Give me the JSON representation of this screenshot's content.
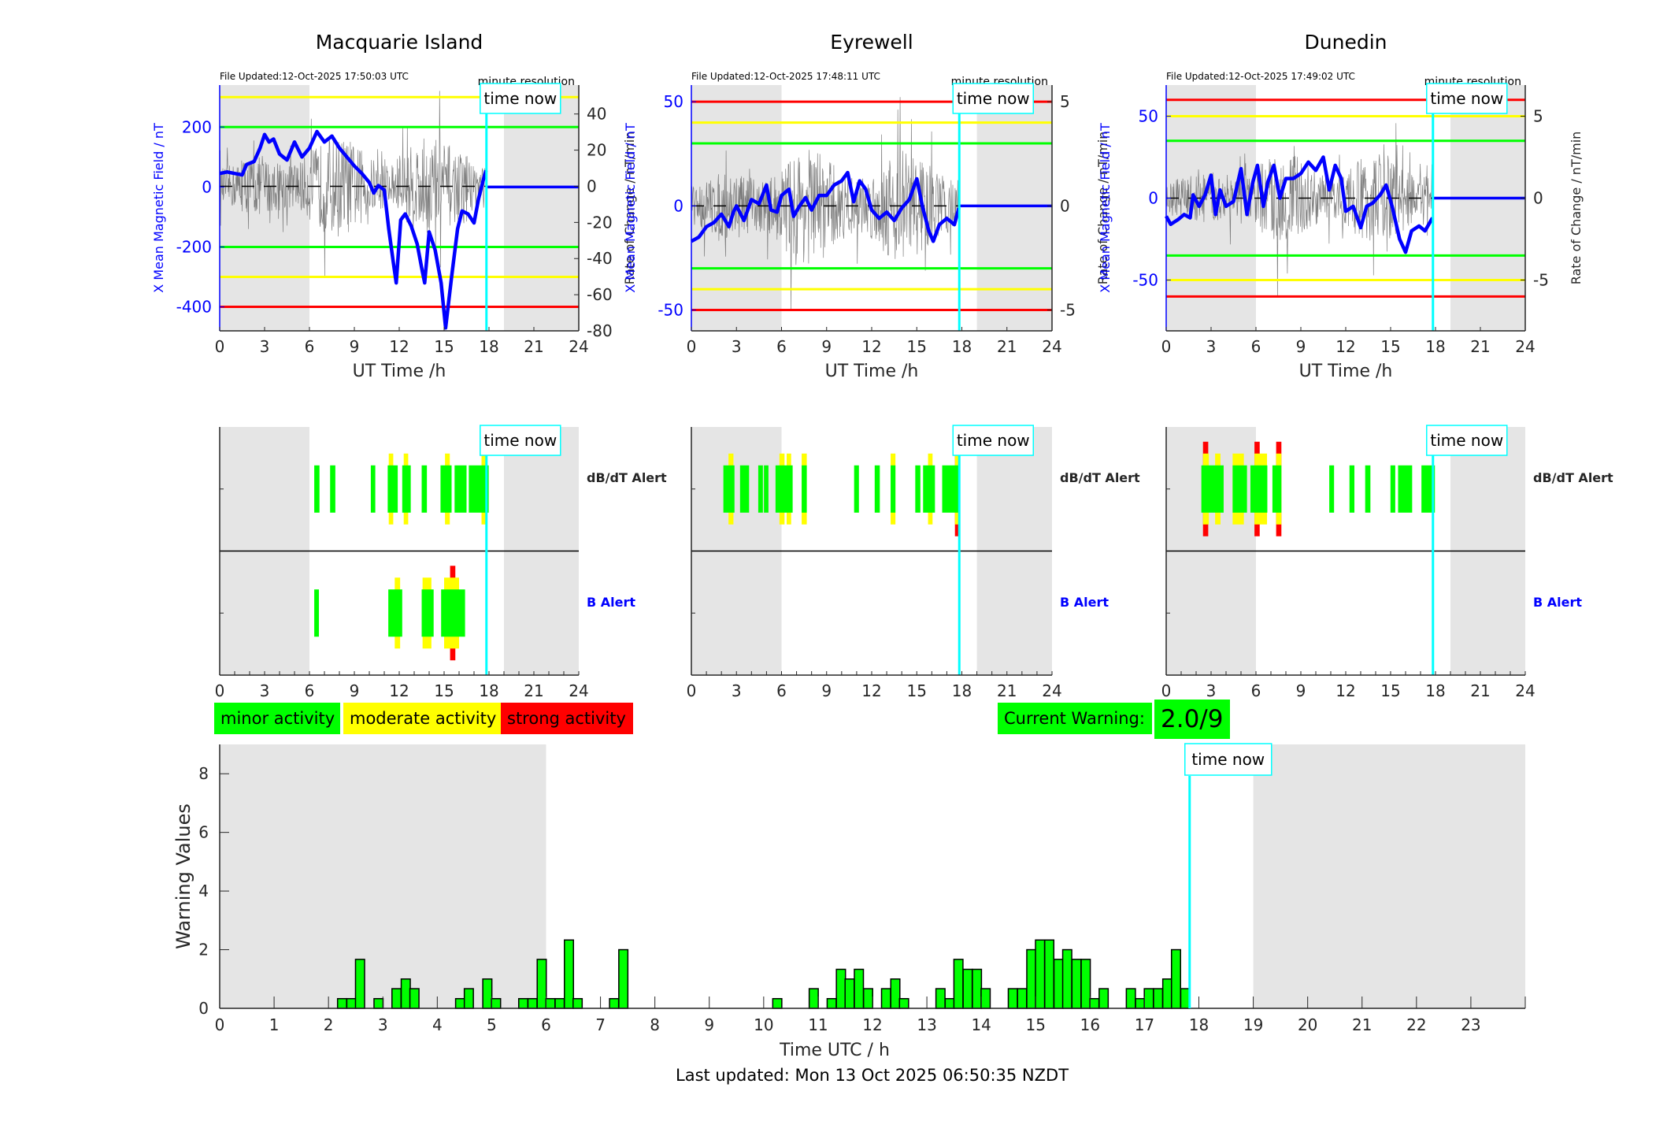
{
  "stations": [
    {
      "name": "Macquarie Island",
      "file_updated": "File Updated:12-Oct-2025 17:50:03 UTC",
      "resolution_label": "minute resolution",
      "left_ylabel": "X Mean Magnetic Field / nT",
      "right_ylabel": "Rate of Change / nT/min",
      "xlabel": "UT Time /h",
      "x_ticks": [
        0,
        3,
        6,
        9,
        12,
        15,
        18,
        21,
        24
      ],
      "b_range": [
        -480,
        340
      ],
      "b_ticks": [
        -400,
        -200,
        0,
        200
      ],
      "dbdt_range": [
        -80,
        56
      ],
      "dbdt_ticks": [
        -80,
        -60,
        -40,
        -20,
        0,
        20,
        40
      ],
      "b_thresholds": {
        "green": 200,
        "yellow": 300,
        "red": 400
      },
      "b_trace": [
        [
          0,
          45
        ],
        [
          0.5,
          50
        ],
        [
          1,
          45
        ],
        [
          1.5,
          40
        ],
        [
          1.8,
          75
        ],
        [
          2.3,
          85
        ],
        [
          2.7,
          130
        ],
        [
          3,
          175
        ],
        [
          3.3,
          150
        ],
        [
          3.6,
          160
        ],
        [
          4,
          110
        ],
        [
          4.5,
          90
        ],
        [
          5,
          150
        ],
        [
          5.5,
          100
        ],
        [
          6,
          130
        ],
        [
          6.5,
          185
        ],
        [
          7,
          150
        ],
        [
          7.5,
          170
        ],
        [
          8,
          130
        ],
        [
          8.5,
          100
        ],
        [
          9,
          70
        ],
        [
          9.5,
          45
        ],
        [
          10,
          15
        ],
        [
          10.3,
          -20
        ],
        [
          10.6,
          5
        ],
        [
          11,
          -10
        ],
        [
          11.3,
          -140
        ],
        [
          11.6,
          -250
        ],
        [
          11.8,
          -320
        ],
        [
          12.1,
          -110
        ],
        [
          12.4,
          -90
        ],
        [
          12.8,
          -130
        ],
        [
          13.2,
          -190
        ],
        [
          13.5,
          -270
        ],
        [
          13.7,
          -320
        ],
        [
          14,
          -150
        ],
        [
          14.4,
          -210
        ],
        [
          14.8,
          -320
        ],
        [
          15.1,
          -470
        ],
        [
          15.5,
          -300
        ],
        [
          15.9,
          -140
        ],
        [
          16.2,
          -80
        ],
        [
          16.6,
          -90
        ],
        [
          17,
          -120
        ],
        [
          17.3,
          -40
        ],
        [
          17.6,
          20
        ],
        [
          17.8,
          55
        ]
      ],
      "dbdt_amplitude": 35,
      "alerts_dbdt": [
        {
          "start": 6.32,
          "end": 6.67,
          "level": "minor"
        },
        {
          "start": 7.38,
          "end": 7.73,
          "level": "minor"
        },
        {
          "start": 10.1,
          "end": 10.4,
          "level": "minor"
        },
        {
          "start": 11.23,
          "end": 11.9,
          "level": "minor"
        },
        {
          "start": 11.3,
          "end": 11.6,
          "level": "moderate"
        },
        {
          "start": 12.2,
          "end": 12.77,
          "level": "minor"
        },
        {
          "start": 12.3,
          "end": 12.6,
          "level": "moderate"
        },
        {
          "start": 13.5,
          "end": 13.85,
          "level": "minor"
        },
        {
          "start": 14.76,
          "end": 15.5,
          "level": "minor"
        },
        {
          "start": 15.06,
          "end": 15.38,
          "level": "moderate"
        },
        {
          "start": 15.7,
          "end": 16.5,
          "level": "minor"
        },
        {
          "start": 16.65,
          "end": 17.98,
          "level": "minor"
        },
        {
          "start": 17.5,
          "end": 17.8,
          "level": "moderate"
        }
      ],
      "alerts_b": [
        {
          "start": 6.32,
          "end": 6.63,
          "level": "minor"
        },
        {
          "start": 11.27,
          "end": 12.2,
          "level": "minor"
        },
        {
          "start": 11.7,
          "end": 12.06,
          "level": "moderate"
        },
        {
          "start": 13.5,
          "end": 14.3,
          "level": "minor"
        },
        {
          "start": 13.56,
          "end": 14.15,
          "level": "moderate"
        },
        {
          "start": 14.8,
          "end": 16.4,
          "level": "minor"
        },
        {
          "start": 15.0,
          "end": 16.0,
          "level": "moderate"
        },
        {
          "start": 15.4,
          "end": 15.75,
          "level": "strong"
        }
      ]
    },
    {
      "name": "Eyrewell",
      "file_updated": "File Updated:12-Oct-2025 17:48:11 UTC",
      "resolution_label": "minute resolution",
      "left_ylabel": "X Mean Magnetic Field / nT",
      "right_ylabel": "Rate of Change / nT/min",
      "xlabel": "UT Time /h",
      "x_ticks": [
        0,
        3,
        6,
        9,
        12,
        15,
        18,
        21,
        24
      ],
      "b_range": [
        -60,
        58
      ],
      "b_ticks": [
        -50,
        0,
        50
      ],
      "dbdt_range": [
        -6,
        5.8
      ],
      "dbdt_ticks": [
        -5,
        0,
        5
      ],
      "b_thresholds": {
        "green": 30,
        "yellow": 40,
        "red": 50
      },
      "b_trace": [
        [
          0,
          -17
        ],
        [
          0.5,
          -15
        ],
        [
          1,
          -10
        ],
        [
          1.5,
          -8
        ],
        [
          2,
          -4
        ],
        [
          2.5,
          -10
        ],
        [
          2.8,
          -3
        ],
        [
          3,
          0
        ],
        [
          3.5,
          -7
        ],
        [
          4,
          3
        ],
        [
          4.5,
          1
        ],
        [
          5,
          10
        ],
        [
          5.3,
          -2
        ],
        [
          5.7,
          -3
        ],
        [
          6,
          5
        ],
        [
          6.5,
          8
        ],
        [
          6.8,
          -5
        ],
        [
          7.2,
          0
        ],
        [
          7.6,
          4
        ],
        [
          8,
          -2
        ],
        [
          8.5,
          5
        ],
        [
          9,
          5
        ],
        [
          9.5,
          10
        ],
        [
          10,
          12
        ],
        [
          10.4,
          16
        ],
        [
          10.8,
          2
        ],
        [
          11.2,
          12
        ],
        [
          11.6,
          8
        ],
        [
          12,
          -2
        ],
        [
          12.5,
          -6
        ],
        [
          13,
          -3
        ],
        [
          13.5,
          -7
        ],
        [
          14,
          -1
        ],
        [
          14.5,
          3
        ],
        [
          15,
          13
        ],
        [
          15.4,
          -1
        ],
        [
          15.8,
          -12
        ],
        [
          16.1,
          -17
        ],
        [
          16.5,
          -9
        ],
        [
          17,
          -6
        ],
        [
          17.5,
          -9
        ],
        [
          17.8,
          -1
        ]
      ],
      "dbdt_amplitude": 3.5,
      "alerts_dbdt": [
        {
          "start": 2.13,
          "end": 2.87,
          "level": "minor"
        },
        {
          "start": 2.47,
          "end": 2.8,
          "level": "moderate"
        },
        {
          "start": 3.24,
          "end": 3.84,
          "level": "minor"
        },
        {
          "start": 4.45,
          "end": 4.76,
          "level": "minor"
        },
        {
          "start": 4.83,
          "end": 5.13,
          "level": "minor"
        },
        {
          "start": 5.6,
          "end": 6.74,
          "level": "minor"
        },
        {
          "start": 5.86,
          "end": 6.2,
          "level": "moderate"
        },
        {
          "start": 6.34,
          "end": 6.64,
          "level": "moderate"
        },
        {
          "start": 7.34,
          "end": 7.68,
          "level": "minor"
        },
        {
          "start": 7.34,
          "end": 7.68,
          "level": "moderate"
        },
        {
          "start": 10.83,
          "end": 11.15,
          "level": "minor"
        },
        {
          "start": 12.2,
          "end": 12.54,
          "level": "minor"
        },
        {
          "start": 13.26,
          "end": 13.58,
          "level": "minor"
        },
        {
          "start": 13.26,
          "end": 13.58,
          "level": "moderate"
        },
        {
          "start": 14.9,
          "end": 15.24,
          "level": "minor"
        },
        {
          "start": 15.42,
          "end": 16.21,
          "level": "minor"
        },
        {
          "start": 15.75,
          "end": 16.05,
          "level": "moderate"
        },
        {
          "start": 16.69,
          "end": 17.8,
          "level": "minor"
        },
        {
          "start": 17.54,
          "end": 17.8,
          "level": "moderate"
        },
        {
          "start": 17.54,
          "end": 17.8,
          "level": "strong"
        }
      ],
      "alerts_b": []
    },
    {
      "name": "Dunedin",
      "file_updated": "File Updated:12-Oct-2025 17:49:02 UTC",
      "resolution_label": "minute resolution",
      "left_ylabel": "X Mean Magnetic Field / nT",
      "right_ylabel": "Rate of Change / nT/min",
      "xlabel": "UT Time /h",
      "x_ticks": [
        0,
        3,
        6,
        9,
        12,
        15,
        18,
        21,
        24
      ],
      "b_range": [
        -81,
        69
      ],
      "b_ticks": [
        -50,
        0,
        50
      ],
      "dbdt_range": [
        -8.1,
        6.9
      ],
      "dbdt_ticks": [
        -5,
        0,
        5
      ],
      "b_thresholds": {
        "green": 35,
        "yellow": 50,
        "red": 60
      },
      "b_trace": [
        [
          0,
          -11
        ],
        [
          0.3,
          -16
        ],
        [
          0.8,
          -13
        ],
        [
          1.2,
          -10
        ],
        [
          1.6,
          -12
        ],
        [
          1.8,
          2
        ],
        [
          2.2,
          -5
        ],
        [
          2.6,
          2
        ],
        [
          3,
          14
        ],
        [
          3.3,
          -10
        ],
        [
          3.6,
          5
        ],
        [
          4,
          -5
        ],
        [
          4.5,
          -2
        ],
        [
          5,
          18
        ],
        [
          5.4,
          -10
        ],
        [
          5.8,
          10
        ],
        [
          6.1,
          20
        ],
        [
          6.5,
          -5
        ],
        [
          6.8,
          10
        ],
        [
          7.2,
          20
        ],
        [
          7.6,
          0
        ],
        [
          8,
          12
        ],
        [
          8.5,
          12
        ],
        [
          9,
          15
        ],
        [
          9.5,
          22
        ],
        [
          10,
          17
        ],
        [
          10.5,
          25
        ],
        [
          10.9,
          5
        ],
        [
          11.3,
          20
        ],
        [
          11.7,
          12
        ],
        [
          12,
          -8
        ],
        [
          12.5,
          -5
        ],
        [
          13,
          -18
        ],
        [
          13.4,
          -5
        ],
        [
          13.8,
          -3
        ],
        [
          14.3,
          2
        ],
        [
          14.7,
          8
        ],
        [
          15.1,
          -5
        ],
        [
          15.6,
          -25
        ],
        [
          16,
          -33
        ],
        [
          16.4,
          -20
        ],
        [
          16.9,
          -17
        ],
        [
          17.3,
          -20
        ],
        [
          17.8,
          -12
        ]
      ],
      "dbdt_amplitude": 3.5,
      "alerts_dbdt": [
        {
          "start": 2.35,
          "end": 3.84,
          "level": "minor"
        },
        {
          "start": 2.46,
          "end": 2.85,
          "level": "moderate"
        },
        {
          "start": 2.46,
          "end": 2.81,
          "level": "strong"
        },
        {
          "start": 3.27,
          "end": 3.63,
          "level": "moderate"
        },
        {
          "start": 4.44,
          "end": 5.4,
          "level": "minor"
        },
        {
          "start": 4.44,
          "end": 5.19,
          "level": "moderate"
        },
        {
          "start": 5.63,
          "end": 6.76,
          "level": "minor"
        },
        {
          "start": 5.9,
          "end": 6.74,
          "level": "moderate"
        },
        {
          "start": 5.9,
          "end": 6.25,
          "level": "strong"
        },
        {
          "start": 7.1,
          "end": 7.7,
          "level": "minor"
        },
        {
          "start": 7.35,
          "end": 7.7,
          "level": "moderate"
        },
        {
          "start": 7.35,
          "end": 7.7,
          "level": "strong"
        },
        {
          "start": 10.9,
          "end": 11.22,
          "level": "minor"
        },
        {
          "start": 12.25,
          "end": 12.58,
          "level": "minor"
        },
        {
          "start": 13.3,
          "end": 13.65,
          "level": "minor"
        },
        {
          "start": 14.99,
          "end": 15.31,
          "level": "minor"
        },
        {
          "start": 15.5,
          "end": 16.44,
          "level": "minor"
        },
        {
          "start": 17.06,
          "end": 17.96,
          "level": "minor"
        }
      ],
      "alerts_b": []
    }
  ],
  "time_now_hours": 17.83,
  "time_now_label": "time now",
  "night_shading": [
    [
      0,
      6
    ],
    [
      19,
      24
    ]
  ],
  "alert_labels": {
    "dbdt": "dB/dT Alert",
    "b": "B Alert"
  },
  "legend": {
    "minor": "minor activity",
    "moderate": "moderate activity",
    "strong": "strong activity"
  },
  "current_warning": {
    "label": "Current Warning:",
    "value": "2.0/9"
  },
  "colors": {
    "minor": "#00ff00",
    "moderate": "#ffff00",
    "strong": "#ff0000",
    "time_now": "#00ffff",
    "b_trace": "#0000ff",
    "shade": "#e5e5e5"
  },
  "chart_data": {
    "type": "bar",
    "title": "",
    "xlabel": "Time UTC / h",
    "ylabel": "Warning Values",
    "xlim": [
      0,
      24
    ],
    "ylim": [
      0,
      9
    ],
    "x_ticks": [
      0,
      1,
      2,
      3,
      4,
      5,
      6,
      7,
      8,
      9,
      10,
      11,
      12,
      13,
      14,
      15,
      16,
      17,
      18,
      19,
      20,
      21,
      22,
      23
    ],
    "y_ticks": [
      0,
      2,
      4,
      6,
      8
    ],
    "bin_width_hours": 0.1667,
    "x": [
      2.25,
      2.42,
      2.58,
      2.92,
      3.25,
      3.42,
      3.58,
      4.42,
      4.58,
      4.92,
      5.08,
      5.58,
      5.75,
      5.92,
      6.08,
      6.25,
      6.42,
      6.58,
      7.25,
      7.42,
      10.25,
      10.92,
      11.25,
      11.42,
      11.58,
      11.75,
      11.92,
      12.25,
      12.42,
      12.58,
      13.25,
      13.42,
      13.58,
      13.75,
      13.92,
      14.08,
      14.58,
      14.75,
      14.92,
      15.08,
      15.25,
      15.42,
      15.58,
      15.75,
      15.92,
      16.08,
      16.25,
      16.75,
      16.92,
      17.08,
      17.25,
      17.42,
      17.58,
      17.75
    ],
    "values": [
      0.33,
      0.33,
      1.67,
      0.33,
      0.67,
      1.0,
      0.67,
      0.33,
      0.67,
      1.0,
      0.33,
      0.33,
      0.33,
      1.67,
      0.33,
      0.33,
      2.33,
      0.33,
      0.33,
      2.0,
      0.33,
      0.67,
      0.33,
      1.33,
      1.0,
      1.33,
      0.67,
      0.67,
      1.0,
      0.33,
      0.67,
      0.33,
      1.67,
      1.33,
      1.33,
      0.67,
      0.67,
      0.67,
      2.0,
      2.33,
      2.33,
      1.67,
      2.0,
      1.67,
      1.67,
      0.33,
      0.67,
      0.67,
      0.33,
      0.67,
      0.67,
      1.0,
      2.0,
      0.67
    ]
  },
  "footer": {
    "last_updated": "Last updated: Mon 13 Oct 2025 06:50:35 NZDT"
  }
}
